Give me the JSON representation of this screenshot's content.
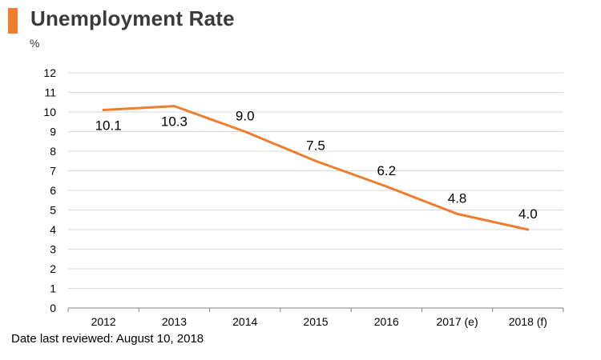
{
  "header": {
    "title": "Unemployment Rate",
    "unit": "%"
  },
  "footnote": "Date last reviewed: August 10, 2018",
  "colors": {
    "accent": "#EF7D2D",
    "line": "#EF7D2D",
    "grid": "#D9D9D9",
    "axis": "#808080"
  },
  "chart_data": {
    "type": "line",
    "categories": [
      "2012",
      "2013",
      "2014",
      "2015",
      "2016",
      "2017 (e)",
      "2018 (f)"
    ],
    "series": [
      {
        "values": [
          10.1,
          10.3,
          9.0,
          7.5,
          6.2,
          4.8,
          4.0
        ],
        "labels": [
          "10.1",
          "10.3",
          "9.0",
          "7.5",
          "6.2",
          "4.8",
          "4.0"
        ]
      }
    ],
    "yticks": [
      "0",
      "1",
      "2",
      "3",
      "4",
      "5",
      "6",
      "7",
      "8",
      "9",
      "10",
      "11",
      "12"
    ],
    "ylim": [
      0,
      12
    ],
    "grid": true,
    "legend": false
  }
}
